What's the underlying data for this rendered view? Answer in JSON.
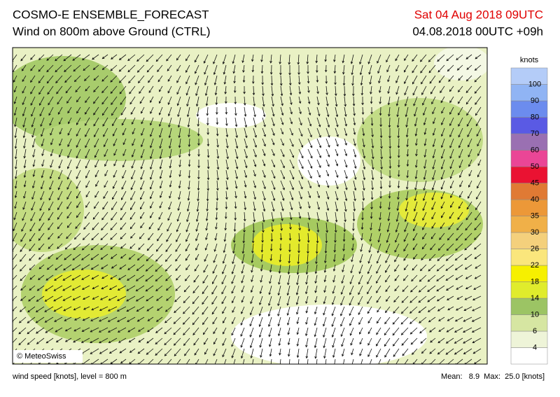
{
  "header": {
    "title": "COSMO-E ENSEMBLE_FORECAST",
    "subtitle": "Wind on 800m above Ground (CTRL)",
    "valid_time": "Sat 04 Aug 2018 09UTC",
    "run_time": "04.08.2018 00UTC +09h"
  },
  "map": {
    "credit": "© MeteoSwiss"
  },
  "legend": {
    "unit": "knots",
    "levels": [
      "4",
      "6",
      "10",
      "14",
      "18",
      "22",
      "26",
      "30",
      "35",
      "40",
      "45",
      "50",
      "60",
      "70",
      "80",
      "90",
      "100"
    ],
    "colors": [
      "#ffffff",
      "#eef4d8",
      "#d6e6a2",
      "#9cc464",
      "#e0ec2c",
      "#f6f000",
      "#fae67c",
      "#f4d07c",
      "#f0b048",
      "#ec9838",
      "#e07a34",
      "#ea1232",
      "#ea4696",
      "#9a70b2",
      "#5a5ae4",
      "#6c8cee",
      "#90b4f4",
      "#b4ccf8"
    ]
  },
  "footer": {
    "left": "wind speed [knots], level = 800 m",
    "right": "Mean:   8.9  Max:  25.0 [knots]"
  }
}
